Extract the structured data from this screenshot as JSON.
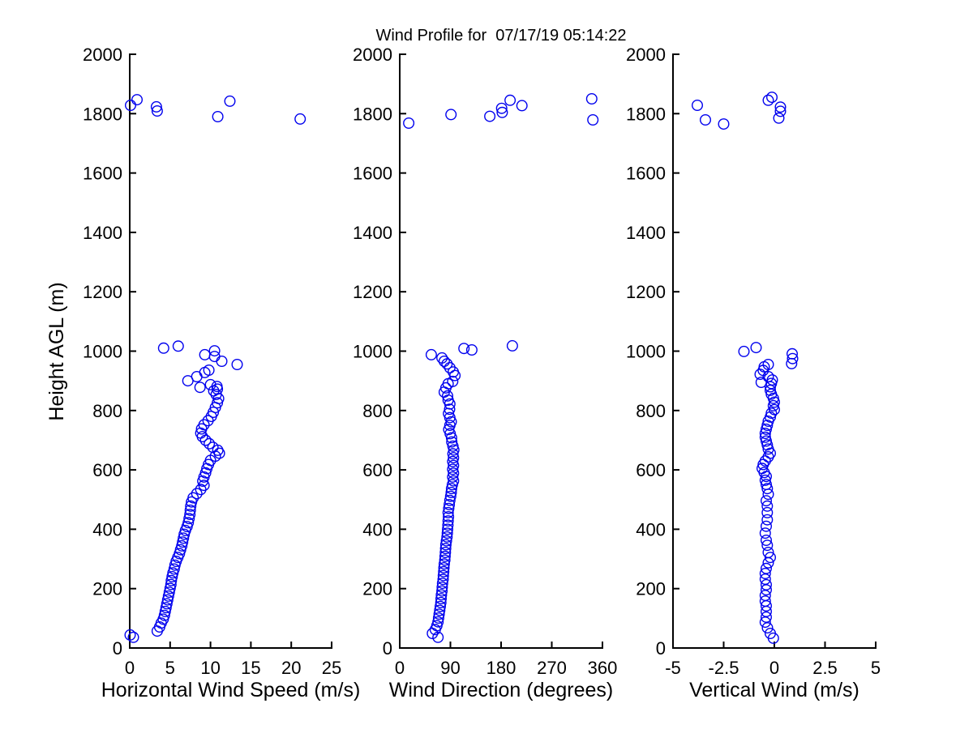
{
  "title": "Wind Profile for  07/17/19 05:14:22",
  "marker_color": "#0000ee",
  "axis_color": "#000000",
  "background_color": "#ffffff",
  "chart_data": {
    "type": "scatter",
    "title": "Wind Profile for  07/17/19 05:14:22",
    "ylabel": "Height AGL (m)",
    "ylim": [
      0,
      2000
    ],
    "yticks": [
      0,
      200,
      400,
      600,
      800,
      1000,
      1200,
      1400,
      1600,
      1800,
      2000
    ],
    "grid": false,
    "legend": null,
    "box": false,
    "marker": "open-circle",
    "panels": [
      {
        "name": "horizontal-wind-speed",
        "xlabel": "Horizontal Wind Speed (m/s)",
        "xlim": [
          0,
          25
        ],
        "xticks": [
          0,
          5,
          10,
          15,
          20,
          25
        ],
        "points": [
          [
            0.05,
            44
          ],
          [
            0.45,
            36
          ],
          [
            3.4,
            57
          ],
          [
            3.7,
            71
          ],
          [
            3.9,
            84
          ],
          [
            4.15,
            97
          ],
          [
            4.3,
            110
          ],
          [
            4.4,
            123
          ],
          [
            4.5,
            136
          ],
          [
            4.6,
            149
          ],
          [
            4.7,
            162
          ],
          [
            4.8,
            175
          ],
          [
            4.9,
            188
          ],
          [
            5.0,
            201
          ],
          [
            5.1,
            214
          ],
          [
            5.15,
            227
          ],
          [
            5.25,
            240
          ],
          [
            5.35,
            253
          ],
          [
            5.5,
            266
          ],
          [
            5.6,
            279
          ],
          [
            5.75,
            292
          ],
          [
            5.95,
            305
          ],
          [
            6.15,
            318
          ],
          [
            6.3,
            331
          ],
          [
            6.45,
            344
          ],
          [
            6.55,
            357
          ],
          [
            6.65,
            370
          ],
          [
            6.75,
            383
          ],
          [
            6.9,
            396
          ],
          [
            7.1,
            409
          ],
          [
            7.25,
            422
          ],
          [
            7.35,
            436
          ],
          [
            7.45,
            450
          ],
          [
            7.5,
            464
          ],
          [
            7.55,
            478
          ],
          [
            7.65,
            492
          ],
          [
            7.85,
            506
          ],
          [
            8.3,
            520
          ],
          [
            8.8,
            534
          ],
          [
            9.2,
            548
          ],
          [
            9.05,
            562
          ],
          [
            9.2,
            576
          ],
          [
            9.4,
            590
          ],
          [
            9.55,
            604
          ],
          [
            9.75,
            618
          ],
          [
            10.0,
            632
          ],
          [
            10.6,
            646
          ],
          [
            11.1,
            656
          ],
          [
            10.9,
            666
          ],
          [
            10.3,
            676
          ],
          [
            9.85,
            688
          ],
          [
            9.4,
            700
          ],
          [
            9.0,
            712
          ],
          [
            8.8,
            724
          ],
          [
            8.9,
            738
          ],
          [
            9.2,
            752
          ],
          [
            9.7,
            766
          ],
          [
            10.1,
            780
          ],
          [
            10.35,
            794
          ],
          [
            10.6,
            810
          ],
          [
            10.85,
            826
          ],
          [
            11.0,
            840
          ],
          [
            10.7,
            854
          ],
          [
            10.4,
            866
          ],
          [
            10.85,
            872
          ],
          [
            8.7,
            878
          ],
          [
            10.8,
            881
          ],
          [
            10.0,
            887
          ],
          [
            7.2,
            900
          ],
          [
            8.3,
            914
          ],
          [
            9.3,
            928
          ],
          [
            9.8,
            936
          ],
          [
            13.3,
            955
          ],
          [
            11.4,
            966
          ],
          [
            10.5,
            982
          ],
          [
            9.3,
            988
          ],
          [
            10.5,
            1001
          ],
          [
            4.2,
            1010
          ],
          [
            6.0,
            1017
          ],
          [
            0.1,
            1828
          ],
          [
            0.9,
            1847
          ],
          [
            3.3,
            1823
          ],
          [
            3.4,
            1809
          ],
          [
            10.9,
            1790
          ],
          [
            12.4,
            1842
          ],
          [
            21.1,
            1782
          ]
        ]
      },
      {
        "name": "wind-direction",
        "xlabel": "Wind Direction (degrees)",
        "xlim": [
          0,
          360
        ],
        "xticks": [
          0,
          90,
          180,
          270,
          360
        ],
        "points": [
          [
            68,
            36
          ],
          [
            58,
            49
          ],
          [
            63,
            62
          ],
          [
            66,
            75
          ],
          [
            68,
            88
          ],
          [
            69,
            101
          ],
          [
            70,
            114
          ],
          [
            71,
            127
          ],
          [
            72,
            140
          ],
          [
            73,
            153
          ],
          [
            73.5,
            166
          ],
          [
            74,
            179
          ],
          [
            75,
            192
          ],
          [
            75.5,
            205
          ],
          [
            76,
            218
          ],
          [
            77,
            231
          ],
          [
            77.5,
            244
          ],
          [
            78,
            257
          ],
          [
            78.5,
            270
          ],
          [
            79,
            283
          ],
          [
            80,
            296
          ],
          [
            80.5,
            309
          ],
          [
            81,
            322
          ],
          [
            81.5,
            335
          ],
          [
            82,
            348
          ],
          [
            83,
            361
          ],
          [
            84,
            374
          ],
          [
            84.5,
            387
          ],
          [
            85,
            400
          ],
          [
            85.5,
            414
          ],
          [
            86,
            428
          ],
          [
            86.5,
            442
          ],
          [
            86,
            456
          ],
          [
            87,
            470
          ],
          [
            88,
            483
          ],
          [
            89,
            497
          ],
          [
            90.5,
            511
          ],
          [
            91.5,
            524
          ],
          [
            92,
            537
          ],
          [
            93.5,
            550
          ],
          [
            95.5,
            563
          ],
          [
            94,
            576
          ],
          [
            95.5,
            589
          ],
          [
            94,
            602
          ],
          [
            95.5,
            615
          ],
          [
            94,
            628
          ],
          [
            95.5,
            641
          ],
          [
            94.5,
            654
          ],
          [
            96,
            667
          ],
          [
            94.5,
            680
          ],
          [
            92.5,
            694
          ],
          [
            92,
            708
          ],
          [
            89.5,
            722
          ],
          [
            87,
            736
          ],
          [
            89,
            750
          ],
          [
            91.5,
            762
          ],
          [
            89,
            776
          ],
          [
            86.5,
            790
          ],
          [
            88.5,
            804
          ],
          [
            89,
            822
          ],
          [
            86,
            835
          ],
          [
            85,
            849
          ],
          [
            79,
            862
          ],
          [
            82,
            876
          ],
          [
            86,
            890
          ],
          [
            94,
            898
          ],
          [
            98,
            918
          ],
          [
            95,
            930
          ],
          [
            89,
            944
          ],
          [
            84,
            957
          ],
          [
            79,
            966
          ],
          [
            75,
            977
          ],
          [
            56,
            988
          ],
          [
            114,
            1009
          ],
          [
            128,
            1004
          ],
          [
            200,
            1018
          ],
          [
            16,
            1768
          ],
          [
            91,
            1797
          ],
          [
            160,
            1791
          ],
          [
            181,
            1818
          ],
          [
            182,
            1804
          ],
          [
            196,
            1845
          ],
          [
            217,
            1827
          ],
          [
            341,
            1850
          ],
          [
            343,
            1779
          ]
        ]
      },
      {
        "name": "vertical-wind",
        "xlabel": "Vertical Wind (m/s)",
        "xlim": [
          -5,
          5
        ],
        "xticks": [
          -5,
          -2.5,
          0,
          2.5,
          5
        ],
        "points": [
          [
            -0.05,
            33
          ],
          [
            -0.2,
            49
          ],
          [
            -0.34,
            68
          ],
          [
            -0.45,
            87
          ],
          [
            -0.4,
            104
          ],
          [
            -0.4,
            123
          ],
          [
            -0.4,
            142
          ],
          [
            -0.45,
            158
          ],
          [
            -0.45,
            177
          ],
          [
            -0.4,
            196
          ],
          [
            -0.4,
            213
          ],
          [
            -0.45,
            232
          ],
          [
            -0.45,
            251
          ],
          [
            -0.4,
            268
          ],
          [
            -0.3,
            287
          ],
          [
            -0.2,
            305
          ],
          [
            -0.3,
            322
          ],
          [
            -0.35,
            346
          ],
          [
            -0.4,
            363
          ],
          [
            -0.45,
            387
          ],
          [
            -0.4,
            410
          ],
          [
            -0.35,
            432
          ],
          [
            -0.35,
            456
          ],
          [
            -0.35,
            478
          ],
          [
            -0.4,
            496
          ],
          [
            -0.3,
            518
          ],
          [
            -0.35,
            537
          ],
          [
            -0.4,
            551
          ],
          [
            -0.45,
            565
          ],
          [
            -0.4,
            578
          ],
          [
            -0.5,
            591
          ],
          [
            -0.6,
            605
          ],
          [
            -0.55,
            618
          ],
          [
            -0.45,
            630
          ],
          [
            -0.3,
            644
          ],
          [
            -0.2,
            656
          ],
          [
            -0.3,
            670
          ],
          [
            -0.35,
            684
          ],
          [
            -0.4,
            697
          ],
          [
            -0.45,
            710
          ],
          [
            -0.45,
            723
          ],
          [
            -0.4,
            737
          ],
          [
            -0.35,
            750
          ],
          [
            -0.3,
            764
          ],
          [
            -0.2,
            778
          ],
          [
            -0.15,
            791
          ],
          [
            0.0,
            803
          ],
          [
            -0.05,
            816
          ],
          [
            0.0,
            828
          ],
          [
            -0.05,
            841
          ],
          [
            -0.15,
            855
          ],
          [
            -0.2,
            868
          ],
          [
            -0.2,
            880
          ],
          [
            -0.15,
            891
          ],
          [
            -0.65,
            895
          ],
          [
            -0.1,
            903
          ],
          [
            -0.3,
            914
          ],
          [
            -0.7,
            922
          ],
          [
            -0.55,
            935
          ],
          [
            -0.5,
            947
          ],
          [
            -0.3,
            955
          ],
          [
            0.85,
            958
          ],
          [
            0.9,
            975
          ],
          [
            0.88,
            991
          ],
          [
            -1.5,
            999
          ],
          [
            -0.9,
            1012
          ],
          [
            -3.8,
            1828
          ],
          [
            -3.4,
            1779
          ],
          [
            -2.5,
            1765
          ],
          [
            -0.3,
            1845
          ],
          [
            -0.12,
            1855
          ],
          [
            0.3,
            1822
          ],
          [
            0.3,
            1808
          ],
          [
            0.22,
            1785
          ]
        ]
      }
    ]
  }
}
